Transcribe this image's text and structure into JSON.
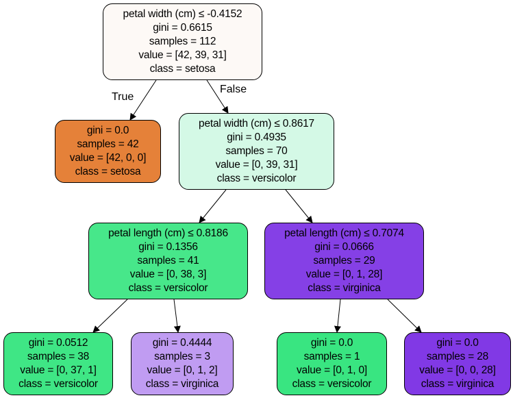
{
  "nodes": {
    "root": {
      "lines": [
        "petal width (cm) ≤ -0.4152",
        "gini = 0.6615",
        "samples = 112",
        "value = [42, 39, 31]",
        "class = setosa"
      ],
      "color": "#fdf9f6"
    },
    "setosa_leaf": {
      "lines": [
        "gini = 0.0",
        "samples = 42",
        "value = [42, 0, 0]",
        "class = setosa"
      ],
      "color": "#e58139"
    },
    "n2": {
      "lines": [
        "petal width (cm) ≤ 0.8617",
        "gini = 0.4935",
        "samples = 70",
        "value = [0, 39, 31]",
        "class = versicolor"
      ],
      "color": "#d4f9e6"
    },
    "n3": {
      "lines": [
        "petal length (cm) ≤ 0.8186",
        "gini = 0.1356",
        "samples = 41",
        "value = [0, 38, 3]",
        "class = versicolor"
      ],
      "color": "#47e78a"
    },
    "n4": {
      "lines": [
        "petal length (cm) ≤ 0.7074",
        "gini = 0.0666",
        "samples = 29",
        "value = [0, 1, 28]",
        "class = virginica"
      ],
      "color": "#8540e6"
    },
    "leaf_a": {
      "lines": [
        "gini = 0.0512",
        "samples = 38",
        "value = [0, 37, 1]",
        "class = versicolor"
      ],
      "color": "#3fe685"
    },
    "leaf_b": {
      "lines": [
        "gini = 0.4444",
        "samples = 3",
        "value = [0, 1, 2]",
        "class = virginica"
      ],
      "color": "#c09cf2"
    },
    "leaf_c": {
      "lines": [
        "gini = 0.0",
        "samples = 1",
        "value = [0, 1, 0]",
        "class = versicolor"
      ],
      "color": "#39e581"
    },
    "leaf_d": {
      "lines": [
        "gini = 0.0",
        "samples = 28",
        "value = [0, 0, 28]",
        "class = virginica"
      ],
      "color": "#8139e5"
    }
  },
  "edges": {
    "true_label": "True",
    "false_label": "False"
  }
}
